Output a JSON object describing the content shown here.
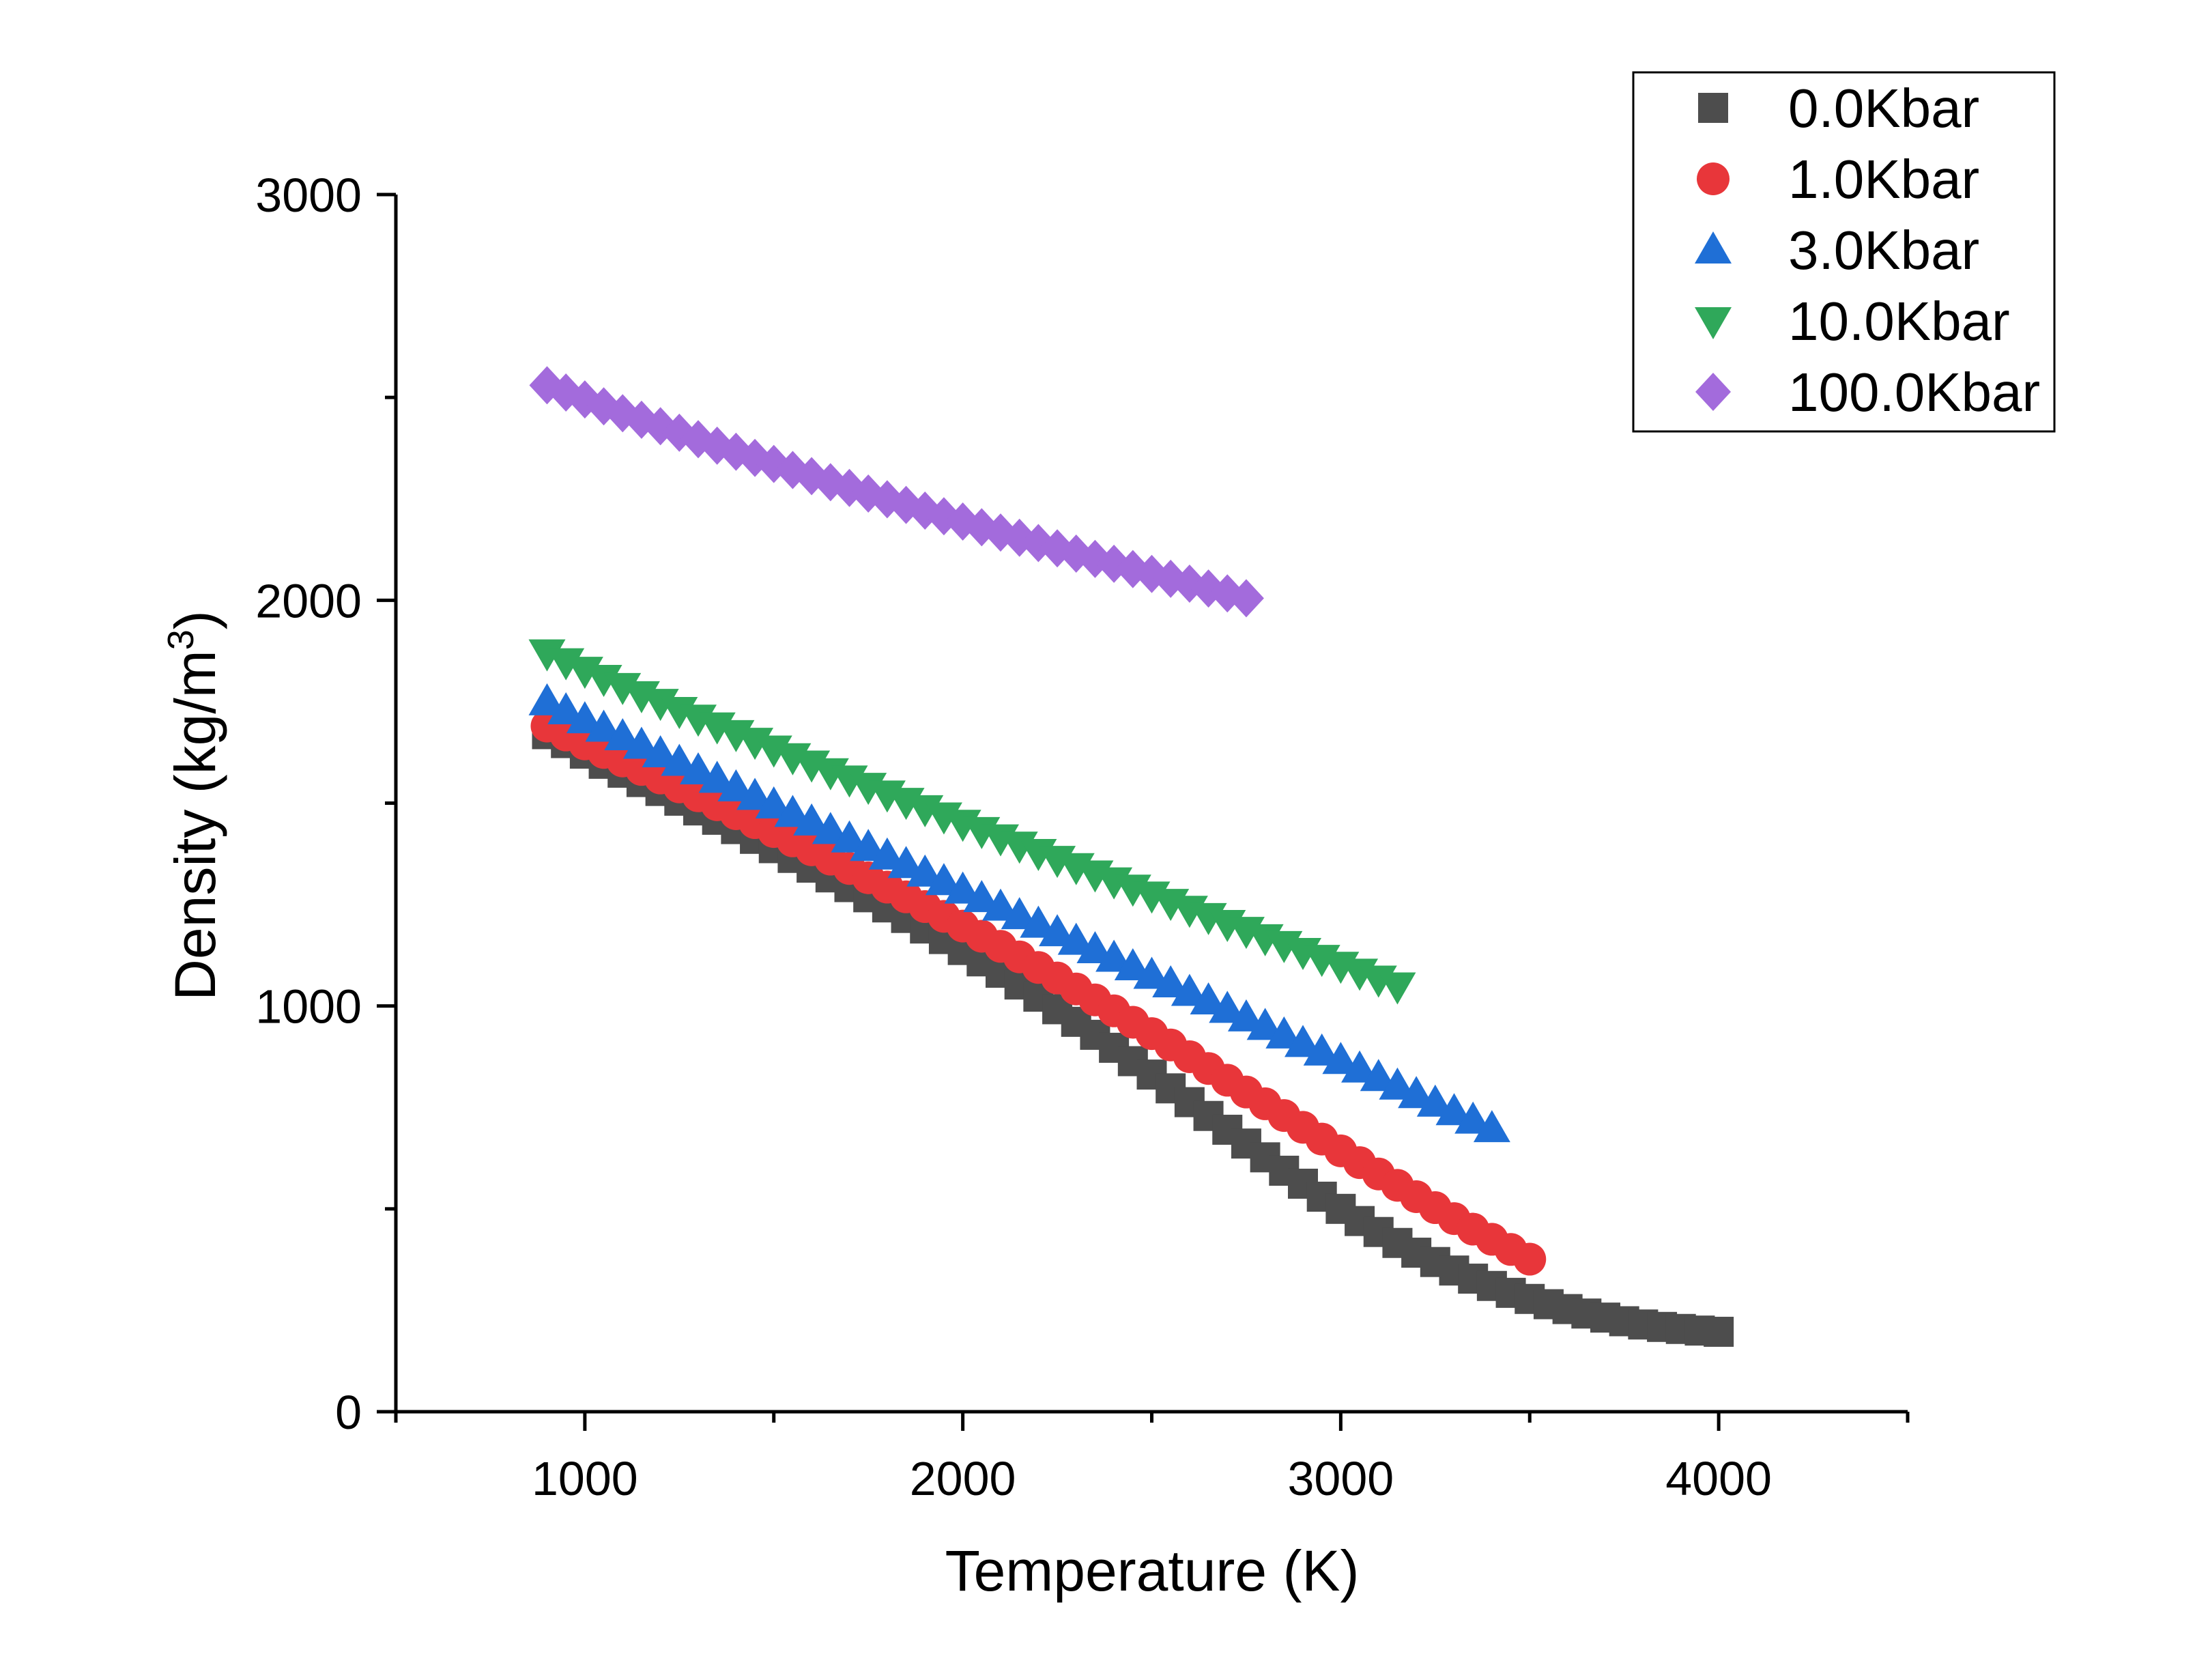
{
  "chart_data": {
    "type": "scatter",
    "title": "",
    "xlabel": "Temperature (K)",
    "ylabel_main": "Density (kg/m",
    "ylabel_sup": "3",
    "ylabel_close": ")",
    "xlim": [
      500,
      4500
    ],
    "ylim": [
      0,
      3000
    ],
    "x_ticks": [
      1000,
      2000,
      3000,
      4000
    ],
    "x_tick_labels": [
      "1000",
      "2000",
      "3000",
      "4000"
    ],
    "x_minor_ticks": [
      500,
      1500,
      2500,
      3500,
      4500
    ],
    "y_ticks": [
      0,
      1000,
      2000,
      3000
    ],
    "y_tick_labels": [
      "0",
      "1000",
      "2000",
      "3000"
    ],
    "y_minor_ticks": [
      500,
      1500,
      2500
    ],
    "grid": false,
    "legend_position": "top-right",
    "x": [
      900,
      950,
      1000,
      1050,
      1100,
      1150,
      1200,
      1250,
      1300,
      1350,
      1400,
      1450,
      1500,
      1550,
      1600,
      1650,
      1700,
      1750,
      1800,
      1850,
      1900,
      1950,
      2000,
      2050,
      2100,
      2150,
      2200,
      2250,
      2300,
      2350,
      2400,
      2450,
      2500,
      2550,
      2600,
      2650,
      2700,
      2750,
      2800,
      2850,
      2900,
      2950,
      3000,
      3050,
      3100,
      3150,
      3200,
      3250,
      3300,
      3350,
      3400,
      3450,
      3500,
      3550,
      3600,
      3650,
      3700,
      3750,
      3800,
      3850,
      3900,
      3950,
      4000
    ],
    "series": [
      {
        "name": "0.0Kbar",
        "marker": "square",
        "color": "#4d4d4d",
        "values": [
          1670,
          1648,
          1622,
          1597,
          1575,
          1552,
          1530,
          1506,
          1482,
          1459,
          1436,
          1412,
          1389,
          1365,
          1341,
          1317,
          1293,
          1268,
          1243,
          1217,
          1191,
          1165,
          1138,
          1110,
          1082,
          1053,
          1023,
          992,
          961,
          929,
          897,
          864,
          831,
          797,
          763,
          729,
          695,
          661,
          627,
          594,
          562,
          530,
          500,
          470,
          443,
          416,
          392,
          369,
          348,
          328,
          310,
          293,
          278,
          265,
          253,
          242,
          232,
          223,
          215,
          209,
          204,
          200,
          197
        ]
      },
      {
        "name": "1.0Kbar",
        "marker": "circle",
        "color": "#e8363a",
        "values": [
          1690,
          1668,
          1646,
          1625,
          1604,
          1583,
          1562,
          1540,
          1518,
          1496,
          1474,
          1452,
          1430,
          1407,
          1385,
          1362,
          1339,
          1316,
          1293,
          1269,
          1245,
          1221,
          1197,
          1172,
          1147,
          1121,
          1095,
          1069,
          1042,
          1015,
          988,
          960,
          932,
          904,
          875,
          846,
          817,
          788,
          759,
          730,
          701,
          672,
          643,
          614,
          586,
          558,
          530,
          503,
          476,
          450,
          425,
          400,
          376
        ]
      },
      {
        "name": "3.0Kbar",
        "marker": "triangle-up",
        "color": "#1f6fd6",
        "values": [
          1750,
          1728,
          1706,
          1685,
          1664,
          1643,
          1622,
          1601,
          1580,
          1559,
          1538,
          1517,
          1496,
          1475,
          1454,
          1433,
          1412,
          1391,
          1370,
          1349,
          1328,
          1307,
          1286,
          1265,
          1244,
          1223,
          1202,
          1181,
          1160,
          1139,
          1118,
          1097,
          1076,
          1055,
          1034,
          1013,
          992,
          971,
          950,
          929,
          908,
          887,
          866,
          845,
          824,
          803,
          782,
          761,
          740,
          719,
          698
        ]
      },
      {
        "name": "10.0Kbar",
        "marker": "triangle-down",
        "color": "#2fa85a",
        "values": [
          1870,
          1848,
          1827,
          1807,
          1787,
          1767,
          1748,
          1728,
          1709,
          1690,
          1671,
          1652,
          1633,
          1614,
          1596,
          1577,
          1559,
          1541,
          1522,
          1504,
          1486,
          1468,
          1450,
          1432,
          1414,
          1396,
          1378,
          1361,
          1343,
          1325,
          1308,
          1290,
          1273,
          1255,
          1238,
          1220,
          1203,
          1186,
          1168,
          1151,
          1134,
          1117,
          1100,
          1083,
          1066,
          1049
        ]
      },
      {
        "name": "100.0Kbar",
        "marker": "diamond",
        "color": "#a36bdc",
        "values": [
          2530,
          2512,
          2495,
          2478,
          2461,
          2445,
          2429,
          2413,
          2397,
          2381,
          2366,
          2351,
          2336,
          2321,
          2306,
          2291,
          2277,
          2263,
          2249,
          2235,
          2221,
          2207,
          2194,
          2180,
          2167,
          2154,
          2141,
          2128,
          2115,
          2102,
          2090,
          2077,
          2065,
          2053,
          2041,
          2029,
          2017,
          2005
        ]
      }
    ]
  }
}
